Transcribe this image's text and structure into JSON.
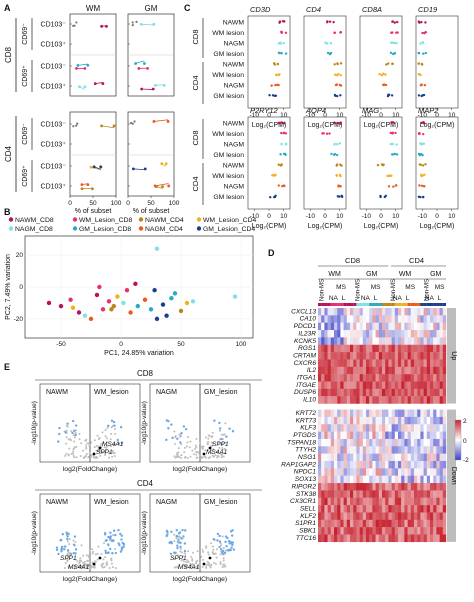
{
  "panels": {
    "A": {
      "letter": "A",
      "col_headers": [
        "WM",
        "GM"
      ],
      "groups": [
        "CD8",
        "CD4"
      ],
      "subgroups": [
        "CD69⁻",
        "CD69⁺"
      ],
      "rows": [
        "CD103⁻",
        "CD103⁺",
        "CD103⁻",
        "CD103⁺"
      ],
      "xlabel": "% of subset",
      "xticks": [
        "0",
        "50",
        "100"
      ]
    },
    "B": {
      "letter": "B",
      "legend": [
        {
          "label": "NAWM_CD8",
          "color": "#b5125f"
        },
        {
          "label": "WM_Lesion_CD8",
          "color": "#e8306e"
        },
        {
          "label": "NAWM_CD4",
          "color": "#b8861b"
        },
        {
          "label": "WM_Lesion_CD4",
          "color": "#f0b020"
        },
        {
          "label": "NAGM_CD8",
          "color": "#7fe0e6"
        },
        {
          "label": "GM_Lesion_CD8",
          "color": "#2aa8c6"
        },
        {
          "label": "NAGM_CD4",
          "color": "#e85a1e"
        },
        {
          "label": "GM_Lesion_CD4",
          "color": "#1a3d8f"
        }
      ],
      "xlabel": "PC1, 24.85% variation",
      "ylabel": "PC2, 7.49% variation",
      "xticks": [
        "-50",
        "0",
        "50",
        "100"
      ],
      "yticks": [
        "-20",
        "0",
        "20"
      ]
    },
    "C": {
      "letter": "C",
      "top_genes": [
        "CD3D",
        "CD4",
        "CD8A",
        "CD19"
      ],
      "bottom_genes": [
        "P2RY12",
        "AQP4",
        "MAG",
        "MAP2"
      ],
      "groups": [
        "CD8",
        "CD4"
      ],
      "rows": [
        "NAWM",
        "WM lesion",
        "NAGM",
        "GM lesion",
        "NAWM",
        "WM lesion",
        "NAGM",
        "GM lesion"
      ],
      "xlabel": "Log₂(CPM)",
      "xticks": [
        "-10",
        "0",
        "10"
      ]
    },
    "D": {
      "letter": "D",
      "top": [
        "CD8",
        "CD4"
      ],
      "mid": [
        "WM",
        "GM",
        "WM",
        "GM"
      ],
      "sub": [
        "Non-MS",
        "MS",
        "Non-MS",
        "MS",
        "Non-MS",
        "MS",
        "Non-MS",
        "MS"
      ],
      "leaf": [
        "NA",
        "L",
        "NA",
        "L",
        "NA",
        "L",
        "NA",
        "L"
      ],
      "genes_up": [
        "CXCL13",
        "CA10",
        "PDCD1",
        "IL23R",
        "KCNK5",
        "RGS1",
        "CRTAM",
        "CXCR6",
        "IL2",
        "ITGA1",
        "ITGAE",
        "DUSP6",
        "IL10"
      ],
      "genes_down": [
        "KRT72",
        "KRT73",
        "KLF3",
        "PTGDS",
        "TSPAN18",
        "TTYH2",
        "NSG1",
        "RAP1GAP2",
        "NPDC1",
        "SOX13",
        "RIPOR2",
        "STK38",
        "CX3CR1",
        "SELL",
        "KLF2",
        "S1PR1",
        "SBK1",
        "TTC16"
      ],
      "side_up": "Up",
      "side_down": "Down",
      "legend_ticks": [
        "2",
        "0",
        "-2"
      ],
      "colors": {
        "high": "#c7232f",
        "mid": "#ffffff",
        "low": "#3a3fc8"
      }
    },
    "E": {
      "letter": "E",
      "row_titles": [
        "CD8",
        "CD4"
      ],
      "plot_titles": [
        [
          "NAWM",
          "WM_lesion"
        ],
        [
          "NAGM",
          "GM_lesion"
        ],
        [
          "NAWM",
          "WM_lesion"
        ],
        [
          "NAGM",
          "GM_lesion"
        ]
      ],
      "labels": [
        [
          "MS4A1",
          "SPP1"
        ],
        [
          "SPP1",
          "MS4A1"
        ],
        [
          "SPP1",
          "MS4A1"
        ],
        [
          "SPP1",
          "MS4A1"
        ]
      ],
      "xlabel": "log2(FoldChange)",
      "ylabel": "-log10(p-value)"
    }
  }
}
